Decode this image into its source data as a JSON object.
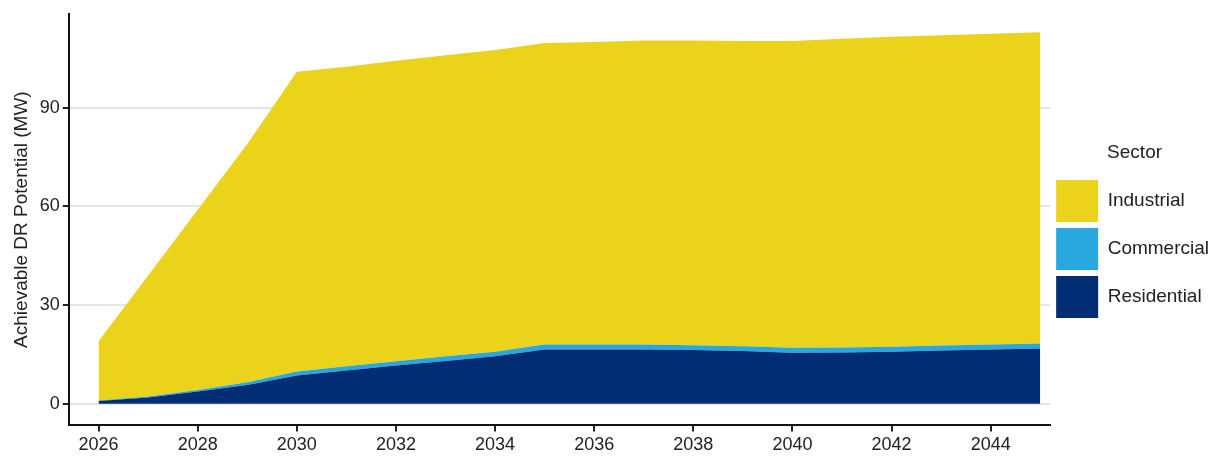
{
  "chart_data": {
    "type": "area",
    "stacked": true,
    "ylabel": "Achievable DR Potential (MW)",
    "legend_title": "Sector",
    "legend": "right",
    "grid": "y",
    "marker": "none",
    "x": [
      2026,
      2027,
      2028,
      2029,
      2030,
      2031,
      2032,
      2033,
      2034,
      2035,
      2036,
      2037,
      2038,
      2039,
      2040,
      2041,
      2042,
      2043,
      2044,
      2045
    ],
    "xlim": [
      2025.4,
      2045.2
    ],
    "xticks": [
      2026,
      2028,
      2030,
      2032,
      2034,
      2036,
      2038,
      2040,
      2042,
      2044
    ],
    "ylim": [
      -6.6,
      118.6
    ],
    "yticks": [
      0,
      30,
      60,
      90
    ],
    "series": [
      {
        "name": "Residential",
        "color": "#002d74",
        "values": [
          0.8,
          1.9,
          3.7,
          5.7,
          8.6,
          10.1,
          11.6,
          13,
          14.4,
          16.5,
          16.5,
          16.5,
          16.3,
          16,
          15.5,
          15.6,
          15.8,
          16.2,
          16.5,
          16.8
        ]
      },
      {
        "name": "Commercial",
        "color": "#29a8e0",
        "values": [
          0.2,
          0.3,
          0.5,
          0.8,
          1.2,
          1.3,
          1.3,
          1.4,
          1.4,
          1.5,
          1.5,
          1.5,
          1.5,
          1.5,
          1.5,
          1.5,
          1.5,
          1.5,
          1.5,
          1.5
        ]
      },
      {
        "name": "Industrial",
        "color": "#ebd31c",
        "values": [
          18,
          36.8,
          54.8,
          72.5,
          91.2,
          91.1,
          91.4,
          91.6,
          91.8,
          91.7,
          92,
          92.5,
          92.7,
          92.8,
          93.3,
          93.9,
          94.3,
          94.4,
          94.5,
          94.7
        ]
      }
    ]
  }
}
